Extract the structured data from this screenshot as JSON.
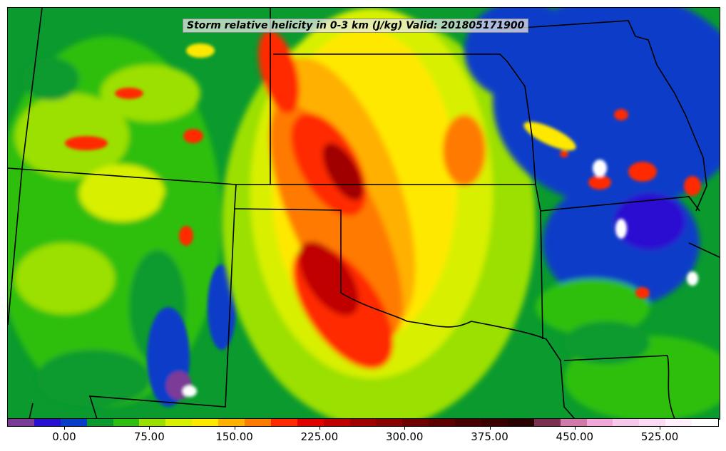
{
  "title": "Storm relative helicity in 0-3 km (J/kg) Valid: 201805171900",
  "colorbar": {
    "colors": [
      "#7b3a96",
      "#2a0fd0",
      "#0a3ec8",
      "#0a9a2e",
      "#2fbf10",
      "#9be000",
      "#d8f000",
      "#ffe800",
      "#ffb000",
      "#ff7a00",
      "#ff2a00",
      "#e00000",
      "#c00000",
      "#a00000",
      "#880000",
      "#700000",
      "#5c0000",
      "#480000",
      "#3a0000",
      "#2a0000",
      "#7a3050",
      "#d07aa8",
      "#f0a8d8",
      "#f8c8ec",
      "#fcdaf4",
      "#fff0fc",
      "#ffffff"
    ],
    "ticks": [
      "0.00",
      "75.00",
      "150.00",
      "225.00",
      "300.00",
      "375.00",
      "450.00",
      "525.00"
    ]
  }
}
